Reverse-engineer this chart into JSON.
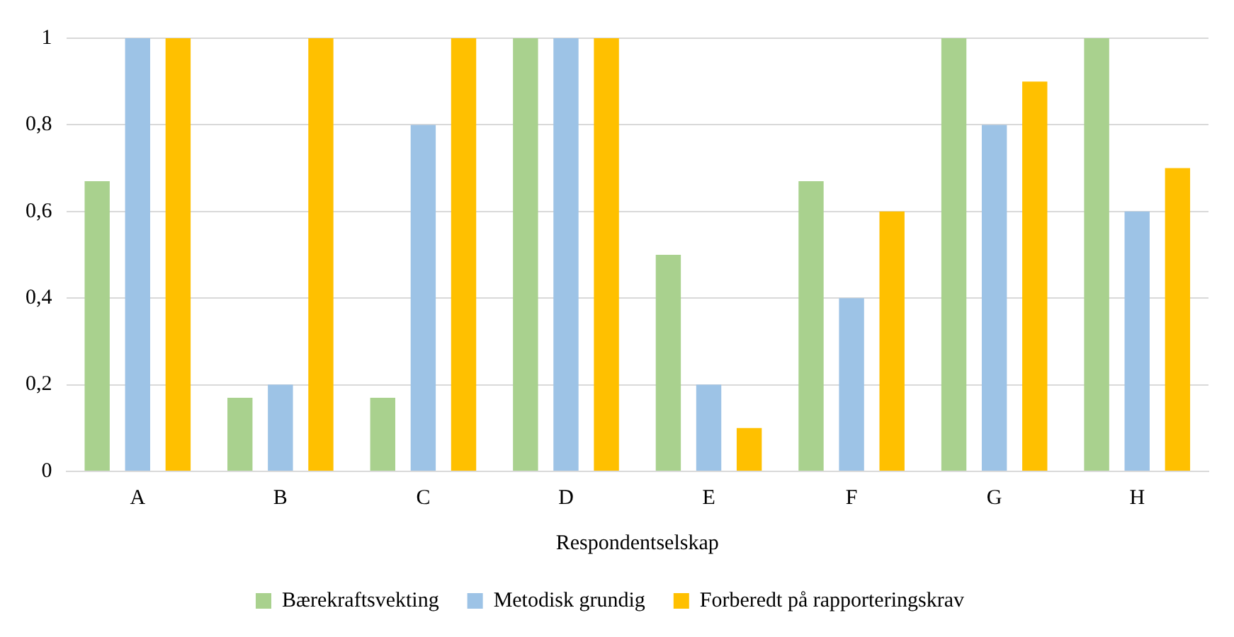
{
  "chart_data": {
    "type": "bar",
    "xlabel": "Respondentselskap",
    "categories": [
      "A",
      "B",
      "C",
      "D",
      "E",
      "F",
      "G",
      "H"
    ],
    "series": [
      {
        "name": "Bærekraftsvekting",
        "color": "#a9d18e",
        "values": [
          0.67,
          0.17,
          0.17,
          1,
          0.5,
          0.67,
          1,
          1
        ]
      },
      {
        "name": "Metodisk grundig",
        "color": "#9dc3e6",
        "values": [
          1,
          0.2,
          0.8,
          1,
          0.2,
          0.4,
          0.8,
          0.6
        ]
      },
      {
        "name": "Forberedt på rapporteringskrav",
        "color": "#ffc000",
        "values": [
          1,
          1,
          1,
          1,
          0.1,
          0.6,
          0.9,
          0.7
        ]
      }
    ],
    "ylim": [
      0,
      1
    ],
    "yticks": [
      0,
      {
        "value": 0.2,
        "label": "0,2"
      },
      {
        "value": 0.4,
        "label": "0,4"
      },
      {
        "value": 0.6,
        "label": "0,6"
      },
      {
        "value": 0.8,
        "label": "0,8"
      },
      1
    ],
    "grid": "y",
    "legend": "bottom"
  }
}
